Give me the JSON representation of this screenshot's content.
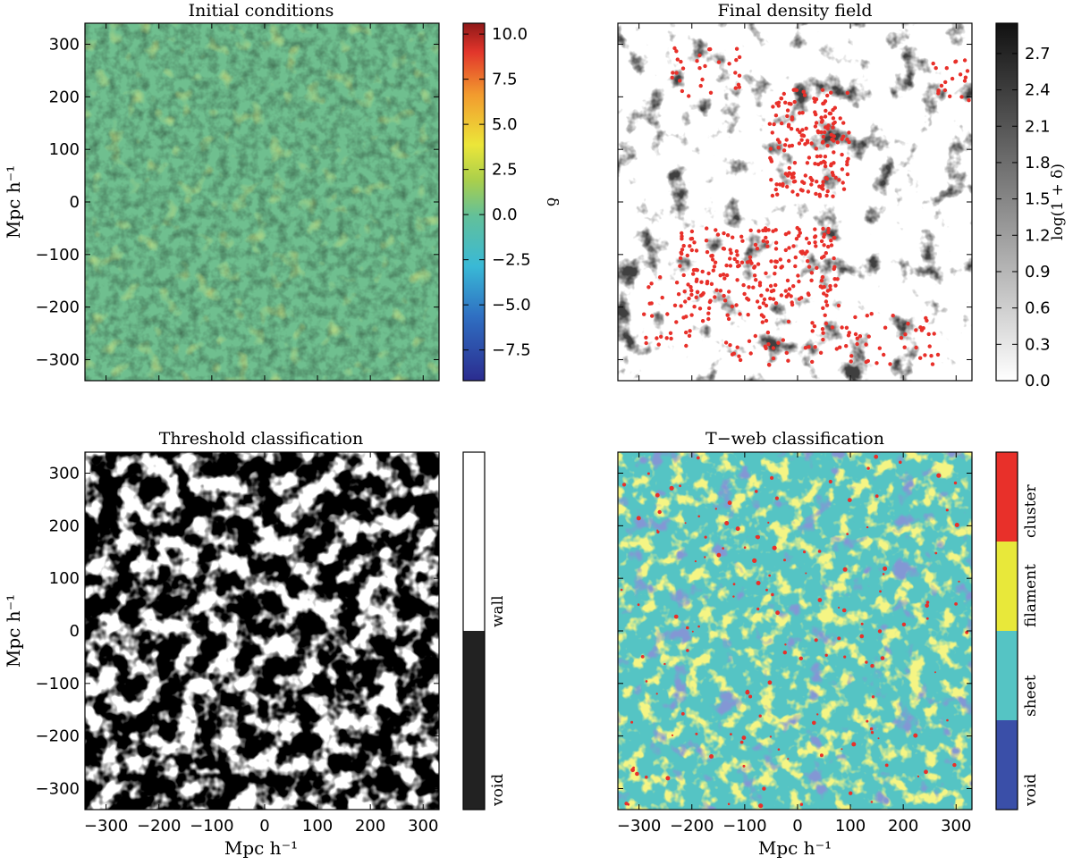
{
  "chart_data": [
    {
      "id": "initial",
      "type": "heatmap",
      "title": "Initial conditions",
      "xlabel": "",
      "ylabel": "Mpc h⁻¹",
      "xlim": [
        -340,
        330
      ],
      "ylim": [
        -340,
        340
      ],
      "yticks": [
        "300",
        "200",
        "100",
        "0",
        "−100",
        "−200",
        "−300"
      ],
      "ytick_values": [
        300,
        200,
        100,
        0,
        -100,
        -200,
        -300
      ],
      "xticks": [],
      "colormap": "jet",
      "colorbar": {
        "label": "δ",
        "range": [
          -9.2,
          10.6
        ],
        "ticks": [
          "10.0",
          "7.5",
          "5.0",
          "2.5",
          "0.0",
          "−2.5",
          "−5.0",
          "−7.5"
        ],
        "tick_values": [
          10.0,
          7.5,
          5.0,
          2.5,
          0.0,
          -2.5,
          -5.0,
          -7.5
        ]
      }
    },
    {
      "id": "final",
      "type": "heatmap",
      "title": "Final density field",
      "xlabel": "",
      "ylabel": "",
      "xlim": [
        -340,
        330
      ],
      "ylim": [
        -340,
        340
      ],
      "colormap": "gray_r",
      "overlay": "scatter points (red) over greyscale density",
      "colorbar": {
        "label": "log(1 + δ)",
        "range": [
          0.0,
          2.95
        ],
        "ticks": [
          "2.7",
          "2.4",
          "2.1",
          "1.8",
          "1.5",
          "1.2",
          "0.9",
          "0.6",
          "0.3",
          "0.0"
        ],
        "tick_values": [
          2.7,
          2.4,
          2.1,
          1.8,
          1.5,
          1.2,
          0.9,
          0.6,
          0.3,
          0.0
        ]
      }
    },
    {
      "id": "threshold",
      "type": "heatmap",
      "title": "Threshold classification",
      "xlabel": "Mpc h⁻¹",
      "ylabel": "Mpc h⁻¹",
      "xlim": [
        -340,
        330
      ],
      "ylim": [
        -340,
        340
      ],
      "xticks": [
        "−300",
        "−200",
        "−100",
        "0",
        "100",
        "200",
        "300"
      ],
      "xtick_values": [
        -300,
        -200,
        -100,
        0,
        100,
        200,
        300
      ],
      "yticks": [
        "300",
        "200",
        "100",
        "0",
        "−100",
        "−200",
        "−300"
      ],
      "ytick_values": [
        300,
        200,
        100,
        0,
        -100,
        -200,
        -300
      ],
      "colorbar": {
        "categories": [
          "void",
          "wall"
        ],
        "colors": [
          "#222222",
          "#ffffff"
        ]
      }
    },
    {
      "id": "tweb",
      "type": "heatmap",
      "title": "T−web classification",
      "xlabel": "Mpc h⁻¹",
      "ylabel": "",
      "xlim": [
        -340,
        330
      ],
      "ylim": [
        -340,
        340
      ],
      "xticks": [
        "−300",
        "−200",
        "−100",
        "0",
        "100",
        "200",
        "300"
      ],
      "xtick_values": [
        -300,
        -200,
        -100,
        0,
        100,
        200,
        300
      ],
      "colorbar": {
        "categories": [
          "void",
          "sheet",
          "filament",
          "cluster"
        ],
        "colors": [
          "#3a4fa8",
          "#55c4c4",
          "#e8e83a",
          "#e8302a"
        ]
      }
    }
  ]
}
